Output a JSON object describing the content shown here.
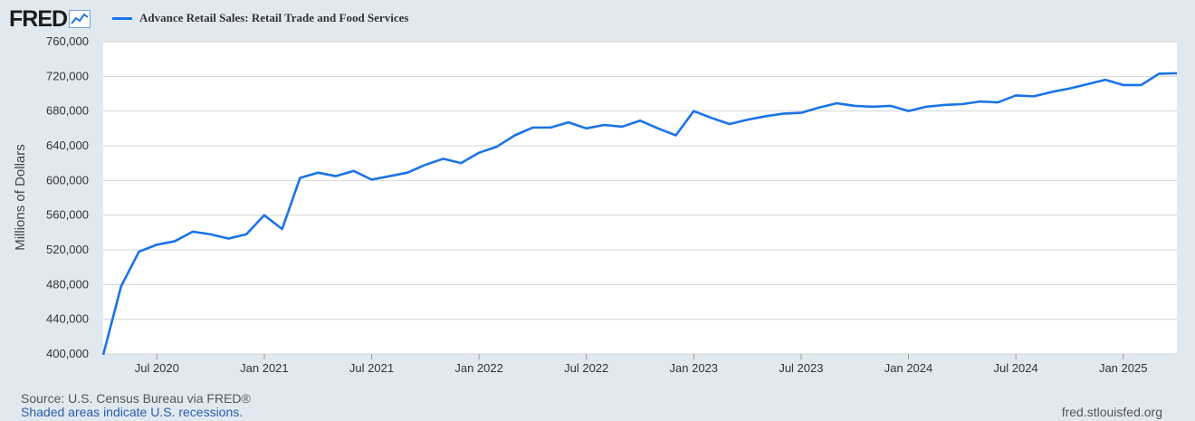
{
  "brand": {
    "logo_text": "FRED",
    "logo_icon": "line-chart-icon"
  },
  "legend": {
    "label": "Advance Retail Sales: Retail Trade and Food Services",
    "color": "#1a73e8"
  },
  "footer": {
    "source": "U.S. Census Bureau via FRED®",
    "source_prefix": "Source: ",
    "note": "Shaded areas indicate U.S. recessions.",
    "url": "fred.stlouisfed.org"
  },
  "chart_data": {
    "type": "line",
    "title": "",
    "ylabel": "Millions of Dollars",
    "xlabel": "",
    "ylim": [
      400000,
      760000
    ],
    "yticks": [
      400000,
      440000,
      480000,
      520000,
      560000,
      600000,
      640000,
      680000,
      720000,
      760000
    ],
    "ytick_labels": [
      "400,000",
      "440,000",
      "480,000",
      "520,000",
      "560,000",
      "600,000",
      "640,000",
      "680,000",
      "720,000",
      "760,000"
    ],
    "xticks": [
      "2020-07",
      "2021-01",
      "2021-07",
      "2022-01",
      "2022-07",
      "2023-01",
      "2023-07",
      "2024-01",
      "2024-07",
      "2025-01"
    ],
    "xtick_labels": [
      "Jul 2020",
      "Jan 2021",
      "Jul 2021",
      "Jan 2022",
      "Jul 2022",
      "Jan 2023",
      "Jul 2023",
      "Jan 2024",
      "Jul 2024",
      "Jan 2025"
    ],
    "xlim": [
      "2020-04",
      "2025-04"
    ],
    "grid": true,
    "series": [
      {
        "name": "Advance Retail Sales: Retail Trade and Food Services",
        "color": "#1a73e8",
        "x": [
          "2020-04",
          "2020-05",
          "2020-06",
          "2020-07",
          "2020-08",
          "2020-09",
          "2020-10",
          "2020-11",
          "2020-12",
          "2021-01",
          "2021-02",
          "2021-03",
          "2021-04",
          "2021-05",
          "2021-06",
          "2021-07",
          "2021-08",
          "2021-09",
          "2021-10",
          "2021-11",
          "2021-12",
          "2022-01",
          "2022-02",
          "2022-03",
          "2022-04",
          "2022-05",
          "2022-06",
          "2022-07",
          "2022-08",
          "2022-09",
          "2022-10",
          "2022-11",
          "2022-12",
          "2023-01",
          "2023-02",
          "2023-03",
          "2023-04",
          "2023-05",
          "2023-06",
          "2023-07",
          "2023-08",
          "2023-09",
          "2023-10",
          "2023-11",
          "2023-12",
          "2024-01",
          "2024-02",
          "2024-03",
          "2024-04",
          "2024-05",
          "2024-06",
          "2024-07",
          "2024-08",
          "2024-09",
          "2024-10",
          "2024-11",
          "2024-12",
          "2025-01",
          "2025-02",
          "2025-03",
          "2025-04"
        ],
        "values": [
          399000,
          478000,
          518000,
          526000,
          530000,
          541000,
          538000,
          533000,
          538000,
          560000,
          544000,
          603000,
          609000,
          605000,
          611000,
          601000,
          605000,
          609000,
          618000,
          625000,
          620000,
          632000,
          639000,
          652000,
          661000,
          661000,
          667000,
          660000,
          664000,
          662000,
          669000,
          660000,
          652000,
          680000,
          672000,
          665000,
          670000,
          674000,
          677000,
          678000,
          684000,
          689000,
          686000,
          685000,
          686000,
          680000,
          685000,
          687000,
          688000,
          691000,
          690000,
          698000,
          697000,
          702000,
          706000,
          711000,
          716000,
          710000,
          710000,
          723000,
          723500
        ]
      }
    ]
  }
}
